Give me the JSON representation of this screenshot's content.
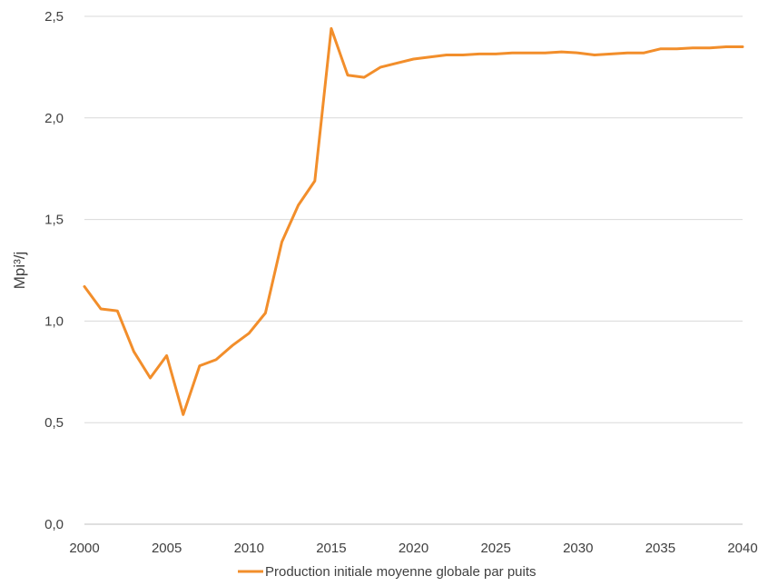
{
  "chart_data": {
    "type": "line",
    "title": "",
    "xlabel": "",
    "ylabel": "Mpi³/j",
    "xlim": [
      2000,
      2040
    ],
    "ylim": [
      0,
      2.5
    ],
    "x_ticks": [
      "2000",
      "2005",
      "2010",
      "2015",
      "2020",
      "2025",
      "2030",
      "2035",
      "2040"
    ],
    "y_ticks": [
      "0,0",
      "0,5",
      "1,0",
      "1,5",
      "2,0",
      "2,5"
    ],
    "grid": "horizontal",
    "legend_position": "bottom",
    "series": [
      {
        "name": "Production initiale moyenne globale par puits",
        "color": "#F28E2B",
        "x": [
          2000,
          2001,
          2002,
          2003,
          2004,
          2005,
          2006,
          2007,
          2008,
          2009,
          2010,
          2011,
          2012,
          2013,
          2014,
          2015,
          2016,
          2017,
          2018,
          2019,
          2020,
          2021,
          2022,
          2023,
          2024,
          2025,
          2026,
          2027,
          2028,
          2029,
          2030,
          2031,
          2032,
          2033,
          2034,
          2035,
          2036,
          2037,
          2038,
          2039,
          2040
        ],
        "values": [
          1.17,
          1.06,
          1.05,
          0.85,
          0.72,
          0.83,
          0.54,
          0.78,
          0.81,
          0.88,
          0.94,
          1.04,
          1.39,
          1.57,
          1.69,
          2.44,
          2.21,
          2.2,
          2.25,
          2.27,
          2.29,
          2.3,
          2.31,
          2.31,
          2.315,
          2.315,
          2.32,
          2.32,
          2.32,
          2.325,
          2.32,
          2.31,
          2.315,
          2.32,
          2.32,
          2.34,
          2.34,
          2.345,
          2.345,
          2.35,
          2.35
        ]
      }
    ]
  }
}
